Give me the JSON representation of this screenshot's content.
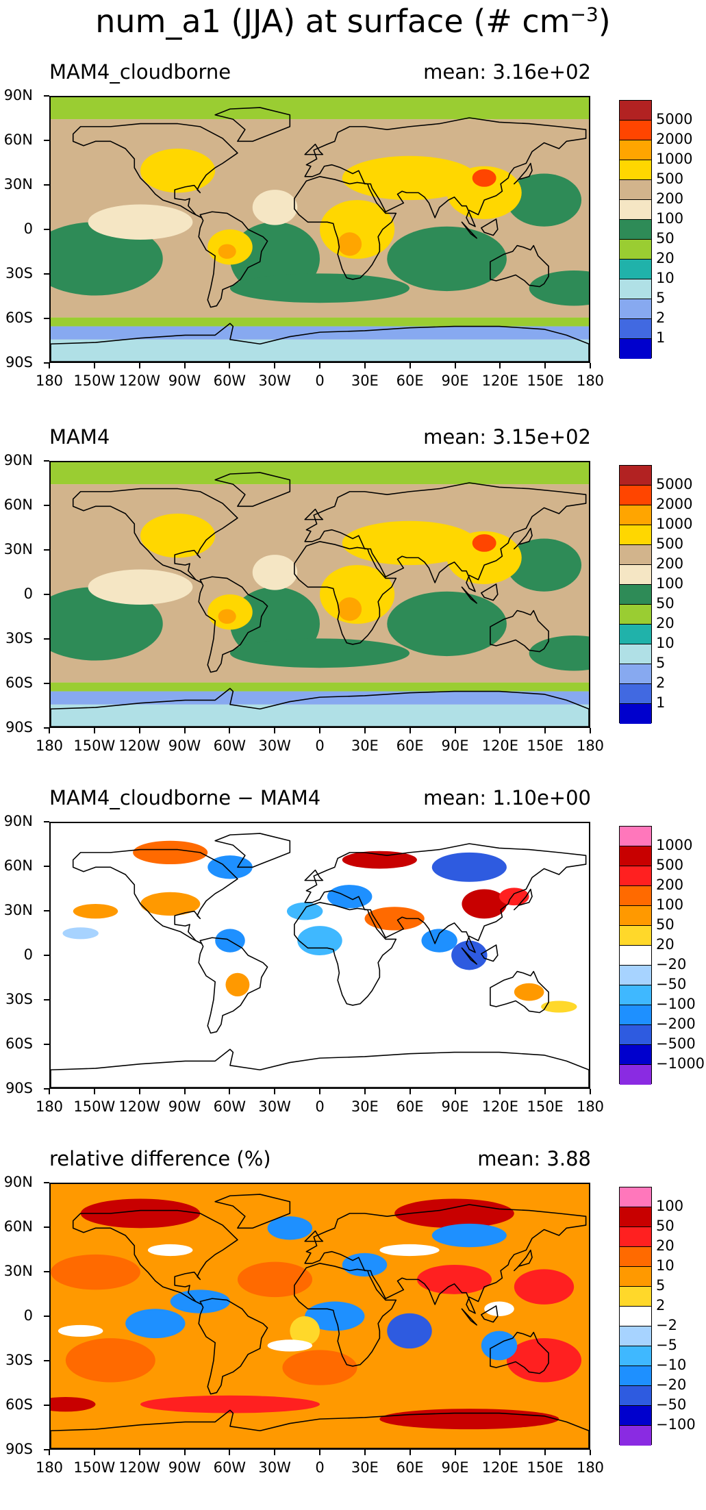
{
  "title_main": "num_a1 (JJA) at surface (# cm",
  "title_sup": "−3",
  "title_end": ")",
  "lat_labels": [
    "90N",
    "60N",
    "30N",
    "0",
    "30S",
    "60S",
    "90S"
  ],
  "lon_labels": [
    "180",
    "150W",
    "120W",
    "90W",
    "60W",
    "30W",
    "0",
    "30E",
    "60E",
    "90E",
    "120E",
    "150E",
    "180"
  ],
  "panels": [
    {
      "title": "MAM4_cloudborne",
      "mean": "mean: 3.16e+02",
      "levels": [
        "5000",
        "2000",
        "1000",
        "500",
        "200",
        "100",
        "50",
        "20",
        "10",
        "5",
        "2",
        "1"
      ],
      "colors": [
        "#b22222",
        "#ff4500",
        "#ffa500",
        "#ffd700",
        "#d2b48c",
        "#f5e6c4",
        "#2e8b57",
        "#9acd32",
        "#20b2aa",
        "#b0e0e6",
        "#87a9f0",
        "#4169e1",
        "#0000cd"
      ]
    },
    {
      "title": "MAM4",
      "mean": "mean: 3.15e+02",
      "levels": [
        "5000",
        "2000",
        "1000",
        "500",
        "200",
        "100",
        "50",
        "20",
        "10",
        "5",
        "2",
        "1"
      ],
      "colors": [
        "#b22222",
        "#ff4500",
        "#ffa500",
        "#ffd700",
        "#d2b48c",
        "#f5e6c4",
        "#2e8b57",
        "#9acd32",
        "#20b2aa",
        "#b0e0e6",
        "#87a9f0",
        "#4169e1",
        "#0000cd"
      ]
    },
    {
      "title": "MAM4_cloudborne − MAM4",
      "mean": "mean: 1.10e+00",
      "levels": [
        "1000",
        "500",
        "200",
        "100",
        "50",
        "20",
        "−20",
        "−50",
        "−100",
        "−200",
        "−500",
        "−1000"
      ],
      "colors": [
        "#ff77bb",
        "#c80000",
        "#ff2020",
        "#ff6a00",
        "#ff9900",
        "#ffd82a",
        "#ffffff",
        "#a7d3ff",
        "#3fb8ff",
        "#1e90ff",
        "#2e5be0",
        "#0000cd",
        "#8a2be2"
      ]
    },
    {
      "title": "relative difference (%)",
      "mean": "mean:  3.88",
      "levels": [
        "100",
        "50",
        "20",
        "10",
        "5",
        "2",
        "−2",
        "−5",
        "−10",
        "−20",
        "−50",
        "−100"
      ],
      "colors": [
        "#ff77bb",
        "#c80000",
        "#ff2020",
        "#ff6a00",
        "#ff9900",
        "#ffd82a",
        "#ffffff",
        "#a7d3ff",
        "#3fb8ff",
        "#1e90ff",
        "#2e5be0",
        "#0000cd",
        "#8a2be2"
      ]
    }
  ]
}
